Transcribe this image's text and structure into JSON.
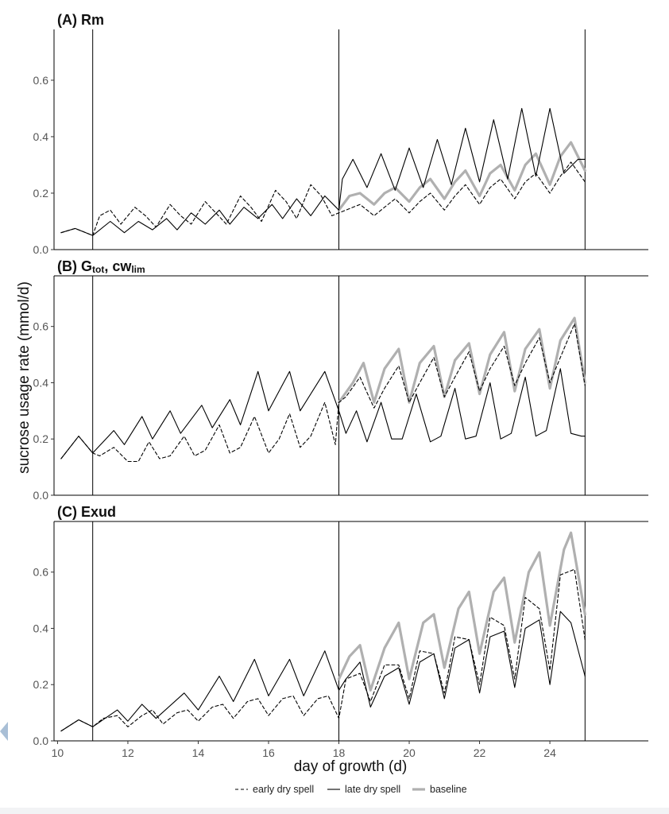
{
  "chart_data": {
    "type": "line",
    "xlabel": "day of growth (d)",
    "ylabel": "sucrose usage rate (mmol/d)",
    "xlim": [
      9.9,
      26.8
    ],
    "ylim": [
      0,
      0.78
    ],
    "x_ticks": [
      "10",
      "12",
      "14",
      "16",
      "18",
      "20",
      "22",
      "24"
    ],
    "y_ticks": [
      "0.0",
      "0.2",
      "0.4",
      "0.6"
    ],
    "vertical_lines": [
      11,
      18,
      25
    ],
    "grid": false,
    "legend": {
      "placement": "bottom",
      "entries": [
        {
          "name": "early dry spell",
          "style": "dashed",
          "color": "#000000"
        },
        {
          "name": "late dry spell",
          "style": "solid",
          "color": "#000000"
        },
        {
          "name": "baseline",
          "style": "solid-thick",
          "color": "#b0b0b0"
        }
      ]
    },
    "panels": [
      {
        "title_prefix": "(A) Rm",
        "title_sub": "",
        "title_tail": "",
        "series": [
          {
            "name": "early dry spell",
            "x": [
              10.1,
              10.5,
              11.0,
              11.2,
              11.5,
              11.8,
              12.2,
              12.5,
              12.8,
              13.2,
              13.5,
              13.8,
              14.2,
              14.5,
              14.8,
              15.2,
              15.5,
              15.8,
              16.2,
              16.5,
              16.8,
              17.2,
              17.5,
              17.8,
              18.0,
              18.2,
              18.6,
              19.0,
              19.3,
              19.6,
              20.0,
              20.3,
              20.6,
              21.0,
              21.3,
              21.6,
              22.0,
              22.3,
              22.6,
              23.0,
              23.3,
              23.6,
              24.0,
              24.3,
              24.6,
              25.0
            ],
            "y": [
              0.06,
              0.075,
              0.05,
              0.12,
              0.14,
              0.09,
              0.15,
              0.12,
              0.08,
              0.16,
              0.12,
              0.09,
              0.17,
              0.13,
              0.09,
              0.19,
              0.15,
              0.1,
              0.21,
              0.17,
              0.11,
              0.23,
              0.19,
              0.12,
              0.13,
              0.14,
              0.16,
              0.12,
              0.15,
              0.18,
              0.13,
              0.17,
              0.2,
              0.14,
              0.19,
              0.23,
              0.16,
              0.22,
              0.25,
              0.18,
              0.24,
              0.27,
              0.2,
              0.26,
              0.31,
              0.24
            ]
          },
          {
            "name": "late dry spell",
            "x": [
              10.1,
              10.5,
              11.0,
              11.5,
              11.9,
              12.3,
              12.7,
              13.1,
              13.4,
              13.8,
              14.2,
              14.6,
              14.9,
              15.3,
              15.7,
              16.1,
              16.4,
              16.8,
              17.2,
              17.6,
              18.0,
              18.1,
              18.4,
              18.8,
              19.2,
              19.6,
              20.0,
              20.4,
              20.8,
              21.2,
              21.6,
              22.0,
              22.4,
              22.8,
              23.2,
              23.6,
              24.0,
              24.4,
              24.8,
              25.0
            ],
            "y": [
              0.06,
              0.075,
              0.05,
              0.1,
              0.06,
              0.1,
              0.07,
              0.11,
              0.07,
              0.13,
              0.09,
              0.14,
              0.09,
              0.15,
              0.11,
              0.16,
              0.11,
              0.18,
              0.12,
              0.19,
              0.14,
              0.25,
              0.32,
              0.22,
              0.34,
              0.21,
              0.36,
              0.22,
              0.39,
              0.23,
              0.43,
              0.24,
              0.46,
              0.25,
              0.5,
              0.26,
              0.5,
              0.27,
              0.32,
              0.32
            ]
          },
          {
            "name": "baseline",
            "x": [
              18.0,
              18.3,
              18.6,
              19.0,
              19.3,
              19.6,
              20.0,
              20.3,
              20.6,
              21.0,
              21.3,
              21.6,
              22.0,
              22.3,
              22.6,
              23.0,
              23.3,
              23.6,
              24.0,
              24.3,
              24.6,
              25.0
            ],
            "y": [
              0.14,
              0.19,
              0.2,
              0.16,
              0.2,
              0.22,
              0.17,
              0.22,
              0.25,
              0.18,
              0.24,
              0.28,
              0.19,
              0.27,
              0.3,
              0.21,
              0.3,
              0.34,
              0.23,
              0.33,
              0.38,
              0.28
            ]
          }
        ]
      },
      {
        "title_prefix": "(B) G",
        "title_sub": "tot",
        "title_tail": ", cw",
        "title_sub2": "lim",
        "series": [
          {
            "name": "early dry spell",
            "x": [
              10.1,
              10.6,
              11.0,
              11.2,
              11.6,
              12.0,
              12.3,
              12.6,
              12.9,
              13.2,
              13.6,
              13.9,
              14.2,
              14.6,
              14.9,
              15.2,
              15.6,
              16.0,
              16.3,
              16.6,
              16.9,
              17.2,
              17.6,
              17.9,
              18.0,
              18.2,
              18.6,
              19.0,
              19.3,
              19.7,
              20.0,
              20.3,
              20.7,
              21.0,
              21.3,
              21.7,
              22.0,
              22.3,
              22.7,
              23.0,
              23.3,
              23.7,
              24.0,
              24.3,
              24.7,
              25.0
            ],
            "y": [
              0.13,
              0.21,
              0.15,
              0.14,
              0.17,
              0.12,
              0.12,
              0.19,
              0.13,
              0.14,
              0.21,
              0.14,
              0.16,
              0.25,
              0.15,
              0.17,
              0.28,
              0.15,
              0.2,
              0.29,
              0.17,
              0.21,
              0.33,
              0.18,
              0.33,
              0.35,
              0.42,
              0.31,
              0.38,
              0.46,
              0.33,
              0.4,
              0.49,
              0.35,
              0.42,
              0.51,
              0.37,
              0.45,
              0.53,
              0.39,
              0.47,
              0.56,
              0.4,
              0.49,
              0.61,
              0.39
            ]
          },
          {
            "name": "late dry spell",
            "x": [
              10.1,
              10.6,
              11.0,
              11.6,
              11.9,
              12.4,
              12.7,
              13.2,
              13.5,
              14.1,
              14.4,
              14.9,
              15.2,
              15.7,
              16.0,
              16.6,
              16.9,
              17.6,
              18.0,
              18.2,
              18.5,
              18.8,
              19.2,
              19.5,
              19.8,
              20.2,
              20.6,
              20.9,
              21.3,
              21.6,
              21.9,
              22.3,
              22.6,
              22.9,
              23.3,
              23.6,
              23.9,
              24.3,
              24.6,
              24.9,
              25.0
            ],
            "y": [
              0.13,
              0.21,
              0.15,
              0.23,
              0.18,
              0.28,
              0.2,
              0.3,
              0.22,
              0.32,
              0.24,
              0.34,
              0.25,
              0.44,
              0.3,
              0.44,
              0.3,
              0.44,
              0.3,
              0.22,
              0.3,
              0.19,
              0.33,
              0.2,
              0.2,
              0.36,
              0.19,
              0.21,
              0.38,
              0.2,
              0.21,
              0.4,
              0.2,
              0.22,
              0.42,
              0.21,
              0.23,
              0.45,
              0.22,
              0.21,
              0.21
            ]
          },
          {
            "name": "baseline",
            "x": [
              18.0,
              18.4,
              18.7,
              19.0,
              19.3,
              19.7,
              20.0,
              20.3,
              20.7,
              21.0,
              21.3,
              21.7,
              22.0,
              22.3,
              22.7,
              23.0,
              23.3,
              23.7,
              24.0,
              24.3,
              24.7,
              25.0
            ],
            "y": [
              0.33,
              0.4,
              0.47,
              0.33,
              0.45,
              0.52,
              0.33,
              0.47,
              0.53,
              0.35,
              0.48,
              0.54,
              0.36,
              0.5,
              0.58,
              0.37,
              0.52,
              0.59,
              0.38,
              0.55,
              0.63,
              0.4
            ]
          }
        ]
      },
      {
        "title_prefix": "(C) Exud",
        "title_sub": "",
        "title_tail": "",
        "series": [
          {
            "name": "early dry spell",
            "x": [
              10.1,
              10.6,
              11.0,
              11.3,
              11.7,
              12.0,
              12.4,
              12.7,
              13.0,
              13.4,
              13.7,
              14.0,
              14.4,
              14.7,
              15.0,
              15.4,
              15.7,
              16.0,
              16.4,
              16.7,
              17.0,
              17.4,
              17.7,
              18.0,
              18.2,
              18.6,
              18.9,
              19.3,
              19.7,
              20.0,
              20.3,
              20.7,
              21.0,
              21.3,
              21.7,
              22.0,
              22.3,
              22.7,
              23.0,
              23.3,
              23.7,
              24.0,
              24.3,
              24.7,
              25.0
            ],
            "y": [
              0.035,
              0.075,
              0.05,
              0.08,
              0.09,
              0.05,
              0.09,
              0.11,
              0.06,
              0.1,
              0.11,
              0.07,
              0.12,
              0.13,
              0.08,
              0.14,
              0.15,
              0.09,
              0.15,
              0.16,
              0.09,
              0.15,
              0.16,
              0.08,
              0.22,
              0.24,
              0.14,
              0.27,
              0.27,
              0.15,
              0.32,
              0.31,
              0.17,
              0.37,
              0.36,
              0.2,
              0.44,
              0.41,
              0.22,
              0.51,
              0.47,
              0.25,
              0.59,
              0.61,
              0.36
            ]
          },
          {
            "name": "late dry spell",
            "x": [
              10.1,
              10.6,
              11.0,
              11.7,
              12.0,
              12.4,
              12.8,
              13.6,
              14.0,
              14.6,
              15.0,
              15.6,
              16.0,
              16.6,
              17.0,
              17.6,
              18.0,
              18.2,
              18.6,
              18.9,
              19.3,
              19.7,
              20.0,
              20.3,
              20.7,
              21.0,
              21.3,
              21.7,
              22.0,
              22.3,
              22.7,
              23.0,
              23.3,
              23.7,
              24.0,
              24.3,
              24.6,
              25.0
            ],
            "y": [
              0.035,
              0.075,
              0.05,
              0.11,
              0.07,
              0.13,
              0.08,
              0.17,
              0.11,
              0.23,
              0.14,
              0.29,
              0.16,
              0.29,
              0.16,
              0.32,
              0.18,
              0.22,
              0.28,
              0.12,
              0.23,
              0.26,
              0.13,
              0.28,
              0.31,
              0.15,
              0.33,
              0.36,
              0.17,
              0.37,
              0.39,
              0.19,
              0.4,
              0.43,
              0.2,
              0.46,
              0.42,
              0.23
            ]
          },
          {
            "name": "baseline",
            "x": [
              18.0,
              18.3,
              18.6,
              18.9,
              19.3,
              19.7,
              20.0,
              20.4,
              20.7,
              21.0,
              21.4,
              21.7,
              22.0,
              22.4,
              22.7,
              23.0,
              23.4,
              23.7,
              24.0,
              24.4,
              24.6,
              25.0
            ],
            "y": [
              0.22,
              0.3,
              0.34,
              0.18,
              0.33,
              0.42,
              0.22,
              0.42,
              0.45,
              0.26,
              0.47,
              0.53,
              0.31,
              0.53,
              0.58,
              0.35,
              0.6,
              0.67,
              0.41,
              0.68,
              0.74,
              0.45
            ]
          }
        ]
      }
    ]
  }
}
